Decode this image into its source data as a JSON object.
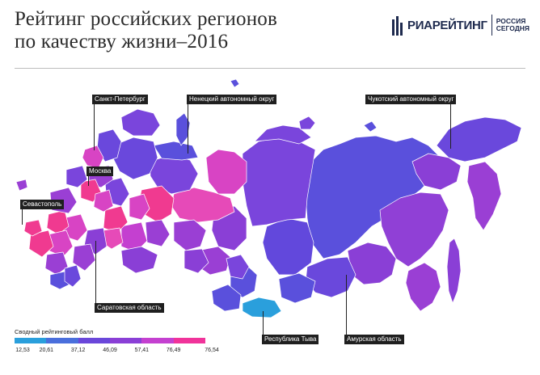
{
  "header": {
    "title_line1": "Рейтинг российских регионов",
    "title_line2": "по качеству жизни–2016"
  },
  "logo": {
    "brand": "РИАРЕЙТИНГ",
    "sub_line1": "РОССИЯ",
    "sub_line2": "СЕГОДНЯ",
    "color": "#1e2a4e"
  },
  "callouts": {
    "spb": "Санкт-Петербург",
    "nenets": "Ненецкий автономный округ",
    "chukotka": "Чукотский автономный округ",
    "moscow": "Москва",
    "sevastopol": "Севастополь",
    "saratov": "Саратовская область",
    "tuva": "Республика Тыва",
    "amur": "Амурская область"
  },
  "legend": {
    "title": "Сводный рейтинговый балл",
    "ticks": [
      "12,53",
      "20,61",
      "37,12",
      "46,09",
      "57,41",
      "76,49",
      "76,54"
    ],
    "colors": [
      "#2a9fdc",
      "#4a6fdc",
      "#6a47da",
      "#8a3fd6",
      "#c440d0",
      "#f0339a"
    ]
  },
  "map_colors": {
    "low": "#2a9fdc",
    "mid_low": "#5a55dc",
    "mid": "#7a45dc",
    "mid_high": "#9a3fd4",
    "high": "#d844c4",
    "top": "#f03a90",
    "border": "#ffffff"
  }
}
